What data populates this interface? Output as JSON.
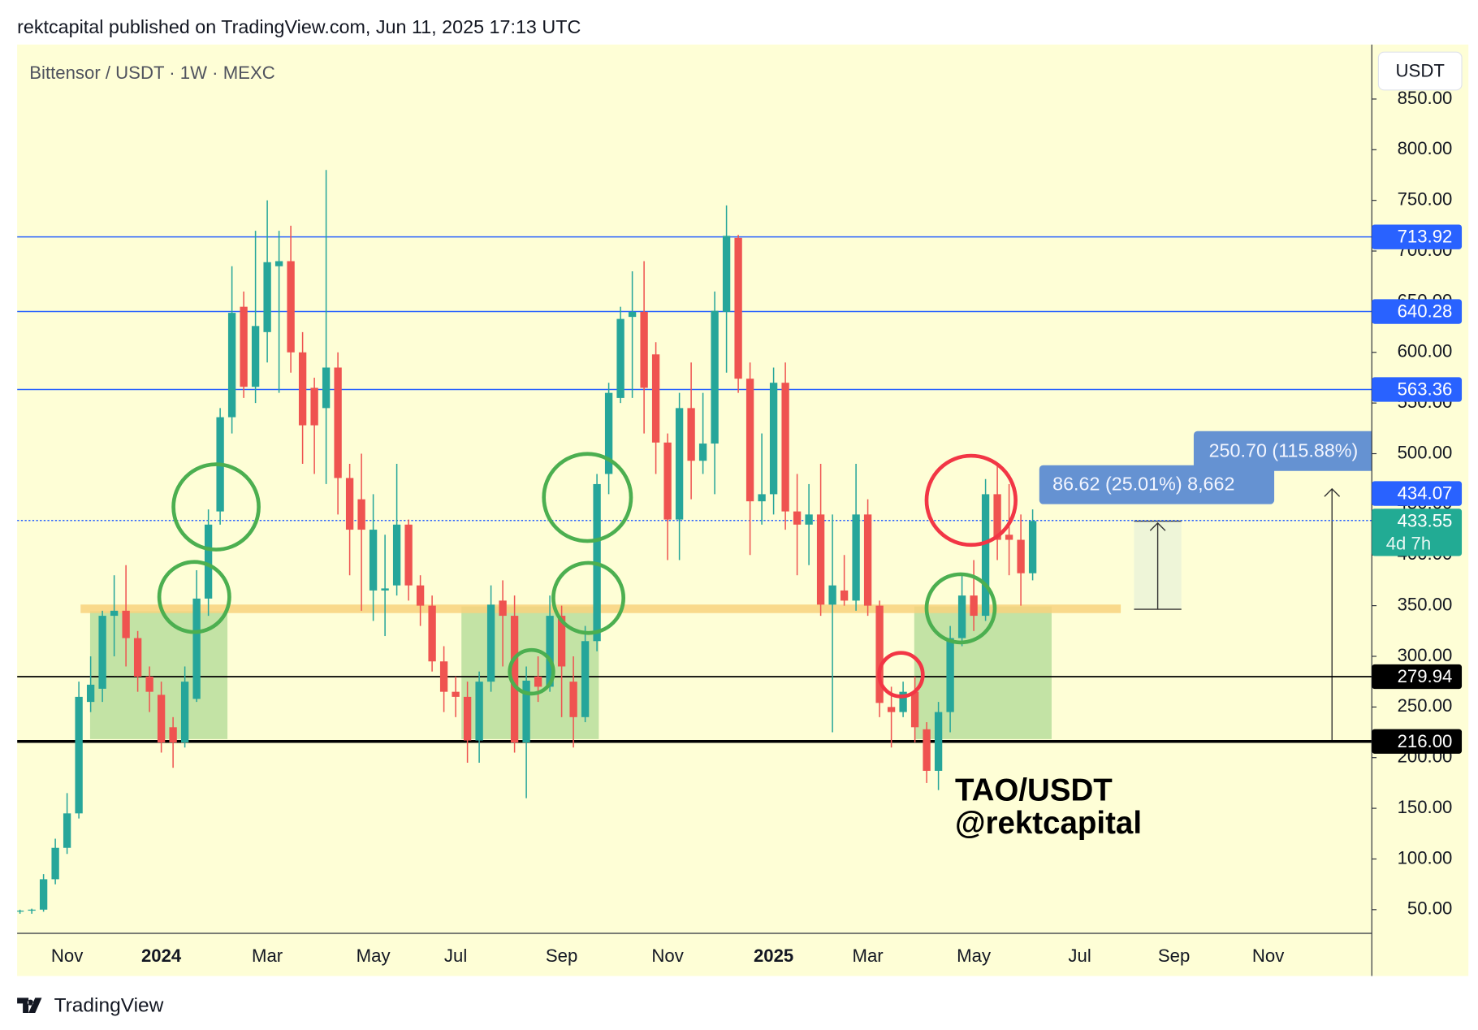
{
  "header": "rektcapital published on TradingView.com, Jun 11, 2025 17:13 UTC",
  "footer": "TradingView",
  "chart_data": {
    "type": "candlestick",
    "title": "Bittensor / USDT · 1W · MEXC",
    "currency": "USDT",
    "categories": [
      null,
      null,
      null,
      null,
      "Nov",
      null,
      null,
      null,
      null,
      null,
      null,
      null,
      "2024",
      null,
      null,
      null,
      null,
      null,
      null,
      null,
      null,
      "Mar",
      null,
      null,
      null,
      null,
      null,
      null,
      null,
      null,
      "May",
      null,
      null,
      null,
      null,
      null,
      null,
      "Jul",
      null,
      null,
      null,
      null,
      null,
      null,
      null,
      null,
      "Sep",
      null,
      null,
      null,
      null,
      null,
      null,
      null,
      null,
      "Nov",
      null,
      null,
      null,
      null,
      null,
      null,
      null,
      null,
      "2025",
      null,
      null,
      null,
      null,
      null,
      null,
      null,
      "Mar",
      null,
      null,
      null,
      null,
      null,
      null,
      null,
      null,
      "May",
      null,
      null,
      null,
      null,
      null,
      null,
      null,
      null,
      "Jul",
      null,
      null,
      null,
      null,
      null,
      null,
      null,
      "Sep",
      null,
      null,
      null,
      null,
      null,
      null,
      null,
      "Nov",
      null,
      null,
      null,
      null,
      null,
      null,
      null,
      null
    ],
    "open": [
      48,
      49,
      50,
      80,
      111,
      145,
      255,
      268,
      340,
      345,
      318,
      280,
      262,
      230,
      215,
      258,
      357,
      443,
      536,
      645,
      566,
      620,
      685,
      690,
      600,
      565,
      545,
      585,
      476,
      455,
      365,
      365,
      370,
      430,
      370,
      350,
      295,
      265,
      260,
      217,
      275,
      355,
      340,
      215,
      280,
      270,
      340,
      275,
      240,
      315,
      480,
      555,
      635,
      640,
      598,
      511,
      435,
      545,
      493,
      510,
      640,
      713,
      574,
      453,
      460,
      570,
      443,
      430,
      440,
      351,
      365,
      355,
      440,
      350,
      250,
      245,
      265,
      228,
      187,
      245,
      318,
      360,
      340,
      460,
      420,
      415,
      382,
      null,
      null,
      null,
      null,
      null,
      null,
      null,
      null,
      null,
      null,
      null,
      null,
      null,
      null,
      null,
      null,
      null,
      null,
      null,
      null,
      null,
      null,
      null,
      null,
      null,
      null,
      null,
      null
    ],
    "high": [
      50,
      51,
      85,
      120,
      165,
      275,
      300,
      345,
      380,
      390,
      325,
      290,
      275,
      240,
      290,
      385,
      445,
      545,
      685,
      660,
      720,
      750,
      720,
      725,
      620,
      575,
      780,
      600,
      490,
      500,
      460,
      420,
      490,
      435,
      380,
      360,
      310,
      280,
      275,
      285,
      370,
      375,
      360,
      290,
      300,
      360,
      350,
      300,
      330,
      480,
      570,
      645,
      680,
      690,
      610,
      520,
      560,
      590,
      560,
      660,
      745,
      716,
      590,
      520,
      585,
      590,
      480,
      470,
      490,
      440,
      400,
      490,
      455,
      355,
      270,
      275,
      280,
      235,
      255,
      330,
      380,
      395,
      475,
      490,
      470,
      440,
      445,
      null,
      null,
      null,
      null,
      null,
      null,
      null,
      null,
      null,
      null,
      null,
      null,
      null,
      null,
      null,
      null,
      null,
      null,
      null,
      null,
      null,
      null,
      null,
      null,
      null,
      null,
      null,
      null
    ],
    "low": [
      46,
      46,
      48,
      75,
      105,
      140,
      245,
      255,
      300,
      290,
      265,
      245,
      205,
      190,
      210,
      255,
      340,
      430,
      520,
      555,
      550,
      590,
      560,
      580,
      490,
      480,
      470,
      440,
      380,
      345,
      335,
      320,
      360,
      355,
      330,
      285,
      245,
      240,
      195,
      195,
      265,
      290,
      205,
      160,
      255,
      265,
      240,
      210,
      235,
      305,
      460,
      550,
      555,
      520,
      480,
      395,
      395,
      455,
      480,
      460,
      580,
      560,
      400,
      430,
      440,
      425,
      380,
      390,
      340,
      225,
      350,
      345,
      340,
      240,
      210,
      240,
      215,
      175,
      168,
      225,
      310,
      325,
      335,
      395,
      380,
      350,
      375,
      null,
      null,
      null,
      null,
      null,
      null,
      null,
      null,
      null,
      null,
      null,
      null,
      null,
      null,
      null,
      null,
      null,
      null,
      null,
      null,
      null,
      null,
      null,
      null,
      null,
      null,
      null,
      null
    ],
    "close": [
      49,
      50,
      80,
      111,
      145,
      260,
      272,
      340,
      345,
      318,
      280,
      265,
      215,
      215,
      275,
      357,
      430,
      536,
      639,
      566,
      626,
      689,
      690,
      600,
      528,
      528,
      585,
      476,
      425,
      425,
      425,
      367,
      430,
      370,
      350,
      295,
      265,
      260,
      217,
      275,
      351,
      340,
      215,
      276,
      270,
      340,
      290,
      240,
      315,
      470,
      560,
      633,
      640,
      565,
      511,
      435,
      545,
      493,
      510,
      641,
      715,
      574,
      453,
      460,
      570,
      443,
      430,
      440,
      351,
      370,
      355,
      440,
      350,
      254,
      245,
      265,
      230,
      187,
      245,
      318,
      360,
      340,
      460,
      415,
      415,
      382,
      433.55,
      null,
      null,
      null,
      null,
      null,
      null,
      null,
      null,
      null,
      null,
      null,
      null,
      null,
      null,
      null,
      null,
      null,
      null,
      null,
      null,
      null,
      null,
      null,
      null,
      null,
      null,
      null,
      null
    ],
    "up_color": "#26a69a",
    "down_color": "#ef5350",
    "ylim": [
      26.6,
      903.8
    ],
    "yticks": [
      {
        "value": 50,
        "label": "50.00"
      },
      {
        "value": 100,
        "label": "100.00"
      },
      {
        "value": 150,
        "label": "150.00"
      },
      {
        "value": 200,
        "label": "200.00"
      },
      {
        "value": 250,
        "label": "250.00"
      },
      {
        "value": 300,
        "label": "300.00"
      },
      {
        "value": 350,
        "label": "350.00"
      },
      {
        "value": 400,
        "label": "400.00"
      },
      {
        "value": 450,
        "label": "450.00"
      },
      {
        "value": 500,
        "label": "500.00"
      },
      {
        "value": 550,
        "label": "550.00"
      },
      {
        "value": 600,
        "label": "600.00"
      },
      {
        "value": 650,
        "label": "650.00"
      },
      {
        "value": 700,
        "label": "700.00"
      },
      {
        "value": 750,
        "label": "750.00"
      },
      {
        "value": 800,
        "label": "800.00"
      },
      {
        "value": 850,
        "label": "850.00"
      }
    ],
    "grid": false,
    "levels": [
      {
        "value": 713.92,
        "color": "#2962ff",
        "style": "solid"
      },
      {
        "value": 640.28,
        "color": "#2962ff",
        "style": "solid"
      },
      {
        "value": 563.36,
        "color": "#2962ff",
        "style": "solid"
      },
      {
        "value": 434.07,
        "color": "#2962ff",
        "style": "dotted"
      },
      {
        "value": 279.94,
        "color": "#000000",
        "style": "solid"
      },
      {
        "value": 216,
        "label": "216.00",
        "color": "#000000",
        "style": "thick"
      }
    ],
    "last_color": "#22ab94",
    "countdown": "4d 7h",
    "annotations": [
      "250.70 (115.88%)",
      "86.62 (25.01%) 8,662",
      "TAO/USDT",
      "@rektcapital"
    ]
  }
}
